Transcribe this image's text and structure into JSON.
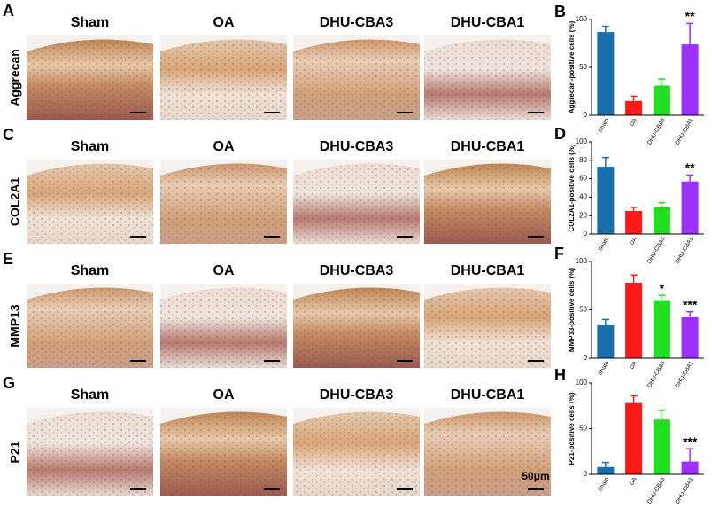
{
  "rows": [
    {
      "letter": "A",
      "stain": "Aggrecan",
      "columns": [
        "Sham",
        "OA",
        "DHU-CBA3",
        "DHU-CBA1"
      ]
    },
    {
      "letter": "C",
      "stain": "COL2A1",
      "columns": [
        "Sham",
        "OA",
        "DHU-CBA3",
        "DHU-CBA1"
      ]
    },
    {
      "letter": "E",
      "stain": "MMP13",
      "columns": [
        "Sham",
        "OA",
        "DHU-CBA3",
        "DHU-CBA1"
      ]
    },
    {
      "letter": "G",
      "stain": "P21",
      "columns": [
        "Sham",
        "OA",
        "DHU-CBA3",
        "DHU-CBA1"
      ]
    }
  ],
  "scale_bar": "50μm",
  "chart_data": [
    {
      "type": "bar",
      "letter": "B",
      "ylabel": "Aggrecan-positive cells (%)",
      "categories": [
        "Sham",
        "OA",
        "DHU-CBA3",
        "DHU-CBA1"
      ],
      "values": [
        87,
        15,
        31,
        74
      ],
      "errors": [
        6,
        5,
        7,
        22
      ],
      "significance": [
        null,
        null,
        null,
        "**"
      ],
      "colors": [
        "#1a6fad",
        "#ff1a1a",
        "#22dd22",
        "#9b30ff"
      ],
      "ylim": [
        0,
        100
      ],
      "yticks": [
        0,
        50,
        100
      ]
    },
    {
      "type": "bar",
      "letter": "D",
      "ylabel": "COL2A1-positive cells (%)",
      "categories": [
        "Sham",
        "OA",
        "DHU-CBA3",
        "DHU-CBA1"
      ],
      "values": [
        73,
        25,
        29,
        57
      ],
      "errors": [
        10,
        4,
        5,
        7
      ],
      "significance": [
        null,
        null,
        null,
        "**"
      ],
      "colors": [
        "#1a6fad",
        "#ff1a1a",
        "#22dd22",
        "#9b30ff"
      ],
      "ylim": [
        0,
        100
      ],
      "yticks": [
        0,
        20,
        40,
        60,
        80,
        100
      ]
    },
    {
      "type": "bar",
      "letter": "F",
      "ylabel": "MMP13-positive cells (%)",
      "categories": [
        "Sham",
        "OA",
        "DHU-CBA3",
        "DHU-CBA1"
      ],
      "values": [
        34,
        78,
        60,
        43
      ],
      "errors": [
        6,
        8,
        5,
        5
      ],
      "significance": [
        null,
        null,
        "*",
        "***"
      ],
      "colors": [
        "#1a6fad",
        "#ff1a1a",
        "#22dd22",
        "#9b30ff"
      ],
      "ylim": [
        0,
        100
      ],
      "yticks": [
        0,
        50,
        100
      ]
    },
    {
      "type": "bar",
      "letter": "H",
      "ylabel": "P21-positive cells (%)",
      "categories": [
        "Sham",
        "OA",
        "DHU-CBA3",
        "DHU-CBA1"
      ],
      "values": [
        8,
        78,
        60,
        14
      ],
      "errors": [
        5,
        8,
        10,
        14
      ],
      "significance": [
        null,
        null,
        null,
        "***"
      ],
      "colors": [
        "#1a6fad",
        "#ff1a1a",
        "#22dd22",
        "#9b30ff"
      ],
      "ylim": [
        0,
        100
      ],
      "yticks": [
        0,
        50,
        100
      ]
    }
  ]
}
